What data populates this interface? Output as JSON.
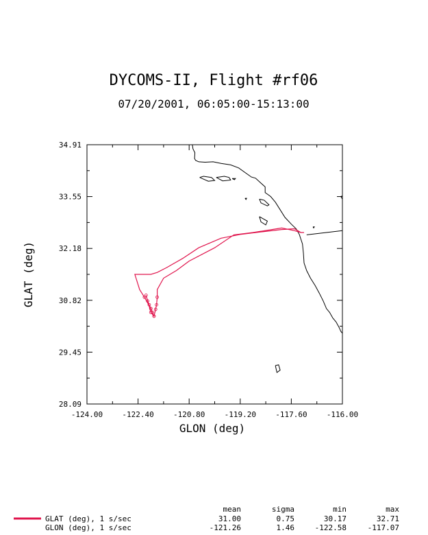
{
  "chart_data": {
    "type": "line",
    "title": "DYCOMS-II, Flight #rf06",
    "subtitle": "07/20/2001, 06:05:00-15:13:00",
    "xlabel": "GLON (deg)",
    "ylabel": "GLAT (deg)",
    "xlim": [
      -124.0,
      -116.0
    ],
    "ylim": [
      28.09,
      34.91
    ],
    "xticks": [
      "-124.00",
      "-122.40",
      "-120.80",
      "-119.20",
      "-117.60",
      "-116.00"
    ],
    "yticks": [
      "34.91",
      "33.55",
      "32.18",
      "30.82",
      "29.45",
      "28.09"
    ],
    "series": [
      {
        "name": "GLAT (deg), 1 s/sec",
        "color": "#e0144c",
        "x": [
          -117.2,
          -117.3,
          -117.5,
          -117.9,
          -118.8,
          -119.4,
          -120.0,
          -120.8,
          -121.2,
          -121.6,
          -121.8,
          -121.8,
          -121.82,
          -121.85,
          -121.9,
          -121.95,
          -122.0,
          -122.05,
          -122.1,
          -122.15,
          -122.0,
          -121.9,
          -122.0,
          -122.2,
          -122.35,
          -122.5,
          -122.0,
          -121.8,
          -121.5,
          -121.0,
          -120.5,
          -119.8,
          -119.2,
          -118.5,
          -117.9,
          -117.5,
          -117.3
        ],
        "y": [
          32.6,
          32.6,
          32.65,
          32.72,
          32.6,
          32.54,
          32.2,
          31.85,
          31.6,
          31.4,
          31.1,
          30.9,
          30.7,
          30.58,
          30.4,
          30.5,
          30.6,
          30.7,
          30.8,
          30.95,
          30.5,
          30.4,
          30.6,
          30.9,
          31.1,
          31.5,
          31.5,
          31.55,
          31.68,
          31.92,
          32.2,
          32.45,
          32.55,
          32.62,
          32.68,
          32.7,
          32.6
        ]
      }
    ],
    "coastline": {
      "color": "#000000",
      "mainland_x": [
        -120.7,
        -120.68,
        -120.62,
        -120.63,
        -120.6,
        -120.5,
        -120.3,
        -120.05,
        -119.8,
        -119.5,
        -119.25,
        -119.0,
        -118.85,
        -118.72,
        -118.55,
        -118.42,
        -118.42,
        -118.25,
        -118.1,
        -117.95,
        -117.8,
        -117.6,
        -117.45,
        -117.35,
        -117.25,
        -117.22,
        -117.2,
        -117.12,
        -117.0,
        -116.85,
        -116.72,
        -116.6,
        -116.5,
        -116.4,
        -116.3,
        -116.2,
        -116.1,
        -116.05,
        -116.0
      ],
      "mainland_y": [
        34.91,
        34.8,
        34.7,
        34.55,
        34.5,
        34.46,
        34.45,
        34.46,
        34.42,
        34.38,
        34.3,
        34.15,
        34.06,
        34.03,
        33.9,
        33.8,
        33.65,
        33.55,
        33.4,
        33.2,
        33.0,
        32.82,
        32.7,
        32.55,
        32.3,
        32.05,
        31.8,
        31.6,
        31.4,
        31.2,
        31.0,
        30.8,
        30.6,
        30.5,
        30.35,
        30.25,
        30.1,
        30.0,
        29.95
      ],
      "border_x": [
        -117.12,
        -116.0
      ],
      "border_y": [
        32.54,
        32.65
      ],
      "islands": [
        {
          "x": [
            -120.47,
            -120.35,
            -120.1,
            -120.0,
            -120.2,
            -120.47
          ],
          "y": [
            34.05,
            34.08,
            34.05,
            33.97,
            33.95,
            34.05
          ]
        },
        {
          "x": [
            -119.95,
            -119.7,
            -119.55,
            -119.5,
            -119.75,
            -119.95
          ],
          "y": [
            34.05,
            34.08,
            34.05,
            33.98,
            33.96,
            34.05
          ]
        },
        {
          "x": [
            -119.45,
            -119.35,
            -119.38,
            -119.45
          ],
          "y": [
            34.02,
            34.02,
            33.99,
            34.02
          ]
        },
        {
          "x": [
            -119.05,
            -119.0,
            -119.02,
            -119.05
          ],
          "y": [
            33.5,
            33.5,
            33.47,
            33.5
          ]
        },
        {
          "x": [
            -118.6,
            -118.45,
            -118.3,
            -118.35,
            -118.55,
            -118.6
          ],
          "y": [
            33.48,
            33.45,
            33.33,
            33.3,
            33.38,
            33.48
          ]
        },
        {
          "x": [
            -118.6,
            -118.35,
            -118.4,
            -118.55,
            -118.6
          ],
          "y": [
            33.02,
            32.9,
            32.8,
            32.88,
            33.02
          ]
        },
        {
          "x": [
            -118.1,
            -118.0,
            -117.95,
            -118.05,
            -118.1
          ],
          "y": [
            29.1,
            29.12,
            28.98,
            28.92,
            29.1
          ]
        },
        {
          "x": [
            -116.92,
            -116.88,
            -116.9,
            -116.92
          ],
          "y": [
            32.75,
            32.75,
            32.72,
            32.75
          ]
        },
        {
          "x": [
            -116.05,
            -116.0,
            -116.0,
            -116.05
          ],
          "y": [
            33.55,
            33.56,
            33.48,
            33.55
          ]
        }
      ]
    },
    "legend_placement": "bottom"
  },
  "stats": {
    "headers": [
      "mean",
      "sigma",
      "min",
      "max"
    ],
    "rows": [
      {
        "label": "GLAT (deg), 1 s/sec",
        "mean": "31.00",
        "sigma": "0.75",
        "min": "30.17",
        "max": "32.71"
      },
      {
        "label": "GLON (deg), 1 s/sec",
        "mean": "-121.26",
        "sigma": "1.46",
        "min": "-122.58",
        "max": "-117.07"
      }
    ]
  }
}
